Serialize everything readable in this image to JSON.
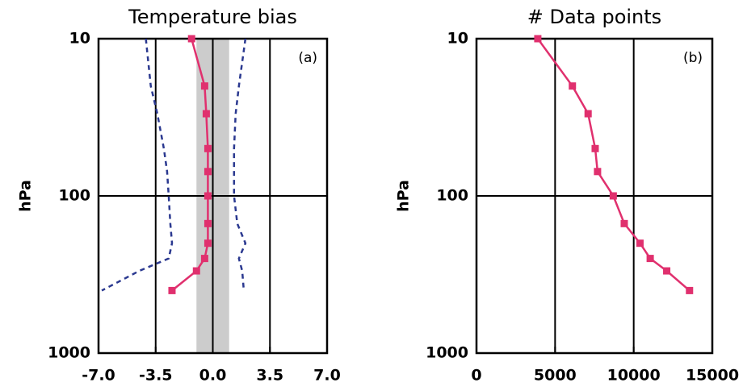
{
  "chart_data": [
    {
      "type": "line",
      "title": "Temperature bias",
      "annotation": "(a)",
      "ylabel": "hPa",
      "ylog": true,
      "ylim": [
        10,
        1000
      ],
      "yticks": [
        10,
        100,
        1000
      ],
      "xlim": [
        -7,
        7
      ],
      "xticks": [
        {
          "value": -7,
          "label": "-7.0"
        },
        {
          "value": -3.5,
          "label": "-3.5"
        },
        {
          "value": 0,
          "label": "0.0"
        },
        {
          "value": 3.5,
          "label": "3.5"
        },
        {
          "value": 7,
          "label": "7.0"
        }
      ],
      "grid": true,
      "band": [
        -1,
        1
      ],
      "band_color": "#cccccc",
      "y": [
        10,
        20,
        30,
        50,
        70,
        100,
        150,
        200,
        250,
        300,
        400
      ],
      "series": [
        {
          "color": "#e0306e",
          "markers": true,
          "dashed": false,
          "values": [
            -1.3,
            -0.5,
            -0.4,
            -0.3,
            -0.3,
            -0.3,
            -0.3,
            -0.3,
            -0.5,
            -1.0,
            -2.5
          ]
        },
        {
          "color": "#2b3990",
          "markers": false,
          "dashed": true,
          "values": [
            -4.1,
            -3.8,
            -3.4,
            -3.0,
            -2.8,
            -2.7,
            -2.6,
            -2.5,
            -2.7,
            -4.5,
            -6.8
          ]
        },
        {
          "color": "#2b3990",
          "markers": false,
          "dashed": true,
          "values": [
            2.0,
            1.6,
            1.4,
            1.3,
            1.3,
            1.3,
            1.5,
            2.0,
            1.6,
            1.8,
            1.9
          ]
        }
      ]
    },
    {
      "type": "line",
      "title": "# Data points",
      "annotation": "(b)",
      "ylabel": "hPa",
      "ylog": true,
      "ylim": [
        10,
        1000
      ],
      "yticks": [
        10,
        100,
        1000
      ],
      "xlim": [
        0,
        15000
      ],
      "xticks": [
        0,
        5000,
        10000,
        15000
      ],
      "grid": true,
      "y": [
        10,
        20,
        30,
        50,
        70,
        100,
        150,
        200,
        250,
        300,
        400
      ],
      "series": [
        {
          "color": "#e0306e",
          "markers": true,
          "dashed": false,
          "values": [
            3900,
            6100,
            7100,
            7550,
            7700,
            8700,
            9400,
            10400,
            11050,
            12100,
            13550
          ]
        }
      ]
    }
  ]
}
